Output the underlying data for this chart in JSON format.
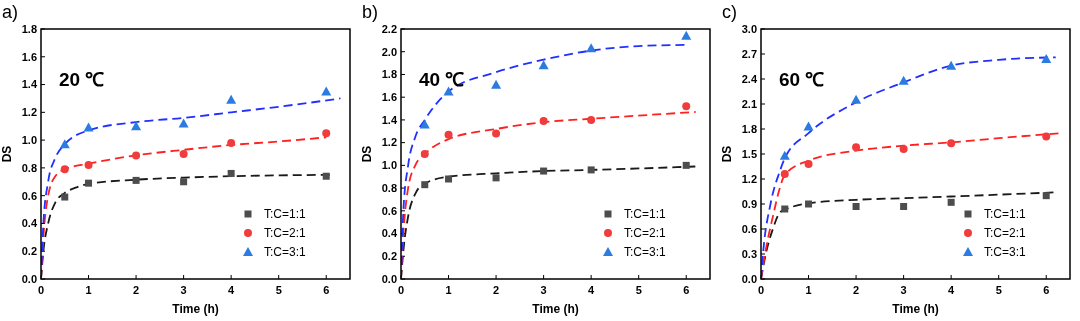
{
  "chart_data": [
    {
      "type": "scatter",
      "title": "a)",
      "xlabel": "Time (h)",
      "ylabel": "DS",
      "annotations": [
        "20 ℃"
      ],
      "xlim": [
        0,
        6.5
      ],
      "xticks": [
        0,
        1,
        2,
        3,
        4,
        5,
        6
      ],
      "ylim": [
        0,
        1.8
      ],
      "yticks": [
        {
          "value": 0,
          "label": "0.0"
        },
        0.2,
        0.4,
        0.6,
        0.8,
        {
          "value": 1,
          "label": "1.0"
        },
        1.2,
        1.4,
        1.6,
        1.8
      ],
      "legend": "bottom right",
      "series": [
        {
          "name": "T:C=1:1",
          "type": "scatter",
          "marker": "square",
          "color": "#4d4d4d",
          "x": [
            0.5,
            1,
            2,
            3,
            4,
            6
          ],
          "values": [
            0.59,
            0.69,
            0.71,
            0.7,
            0.76,
            0.74
          ]
        },
        {
          "name": "T:C=2:1",
          "type": "scatter",
          "marker": "circle",
          "color": "#f03c3c",
          "x": [
            0.5,
            1,
            2,
            3,
            4,
            6
          ],
          "values": [
            0.79,
            0.82,
            0.89,
            0.9,
            0.98,
            1.05
          ]
        },
        {
          "name": "T:C=3:1",
          "type": "scatter",
          "marker": "triangle",
          "color": "#2b7be0",
          "x": [
            0.5,
            1,
            2,
            3,
            4,
            6
          ],
          "values": [
            0.97,
            1.09,
            1.1,
            1.12,
            1.29,
            1.35
          ]
        },
        {
          "type": "line",
          "line_style": "dashed",
          "color": "#1a1a1a",
          "x": [
            0,
            0.05,
            0.15,
            0.3,
            0.5,
            0.75,
            1,
            2,
            3,
            4,
            6.1
          ],
          "values": [
            0,
            0.2,
            0.4,
            0.55,
            0.62,
            0.66,
            0.685,
            0.715,
            0.73,
            0.74,
            0.75
          ]
        },
        {
          "type": "line",
          "line_style": "dashed",
          "color": "#ff2020",
          "x": [
            0,
            0.05,
            0.15,
            0.3,
            0.5,
            1,
            2,
            3,
            4,
            5,
            6
          ],
          "values": [
            0,
            0.3,
            0.6,
            0.74,
            0.79,
            0.83,
            0.89,
            0.93,
            0.965,
            0.99,
            1.02
          ]
        },
        {
          "type": "line",
          "line_style": "dashed",
          "color": "#2030ff",
          "x": [
            0,
            0.05,
            0.15,
            0.3,
            0.5,
            1,
            2,
            3,
            4,
            5,
            6.3
          ],
          "values": [
            0,
            0.4,
            0.7,
            0.87,
            0.97,
            1.07,
            1.13,
            1.16,
            1.2,
            1.24,
            1.3
          ]
        }
      ]
    },
    {
      "type": "scatter",
      "title": "b)",
      "xlabel": "Time (h)",
      "ylabel": "DS",
      "annotations": [
        "40 ℃"
      ],
      "xlim": [
        0,
        6.5
      ],
      "xticks": [
        0,
        1,
        2,
        3,
        4,
        5,
        6
      ],
      "ylim": [
        0,
        2.2
      ],
      "yticks": [
        {
          "value": 0,
          "label": "0.0"
        },
        0.2,
        0.4,
        0.6,
        0.8,
        {
          "value": 1,
          "label": "1.0"
        },
        1.2,
        1.4,
        1.6,
        1.8,
        {
          "value": 2,
          "label": "2.0"
        },
        2.2
      ],
      "legend": "bottom right",
      "series": [
        {
          "name": "T:C=1:1",
          "type": "scatter",
          "marker": "square",
          "color": "#4d4d4d",
          "x": [
            0.5,
            1,
            2,
            3,
            4,
            6
          ],
          "values": [
            0.83,
            0.88,
            0.89,
            0.95,
            0.96,
            1.0
          ]
        },
        {
          "name": "T:C=2:1",
          "type": "scatter",
          "marker": "circle",
          "color": "#f03c3c",
          "x": [
            0.5,
            1,
            2,
            3,
            4,
            6
          ],
          "values": [
            1.1,
            1.27,
            1.28,
            1.39,
            1.4,
            1.52
          ]
        },
        {
          "name": "T:C=3:1",
          "type": "scatter",
          "marker": "triangle",
          "color": "#2b7be0",
          "x": [
            0.5,
            1,
            2,
            3,
            4,
            6
          ],
          "values": [
            1.36,
            1.65,
            1.71,
            1.88,
            2.03,
            2.14
          ]
        },
        {
          "type": "line",
          "line_style": "dashed",
          "color": "#1a1a1a",
          "x": [
            0,
            0.05,
            0.15,
            0.3,
            0.5,
            1,
            2,
            3,
            4,
            6.2
          ],
          "values": [
            0,
            0.25,
            0.55,
            0.75,
            0.84,
            0.9,
            0.93,
            0.95,
            0.96,
            0.99
          ]
        },
        {
          "type": "line",
          "line_style": "dashed",
          "color": "#ff2020",
          "x": [
            0,
            0.05,
            0.15,
            0.3,
            0.5,
            1,
            2,
            3,
            4,
            6.2
          ],
          "values": [
            0,
            0.4,
            0.8,
            1.0,
            1.1,
            1.23,
            1.32,
            1.38,
            1.41,
            1.47
          ]
        },
        {
          "type": "line",
          "line_style": "dashed",
          "color": "#2030ff",
          "x": [
            0,
            0.05,
            0.15,
            0.3,
            0.5,
            1,
            2,
            3,
            4,
            5,
            6
          ],
          "values": [
            0,
            0.6,
            1.0,
            1.25,
            1.4,
            1.65,
            1.82,
            1.93,
            2.01,
            2.05,
            2.06
          ]
        }
      ]
    },
    {
      "type": "scatter",
      "title": "c)",
      "xlabel": "Time (h)",
      "ylabel": "DS",
      "annotations": [
        "60 ℃"
      ],
      "xlim": [
        0,
        6.5
      ],
      "xticks": [
        0,
        1,
        2,
        3,
        4,
        5,
        6
      ],
      "ylim": [
        0,
        3.0
      ],
      "yticks": [
        {
          "value": 0,
          "label": "0.0"
        },
        0.3,
        0.6,
        0.9,
        1.2,
        1.5,
        1.8,
        2.1,
        2.4,
        2.7,
        {
          "value": 3,
          "label": "3.0"
        }
      ],
      "legend": "bottom right",
      "series": [
        {
          "name": "T:C=1:1",
          "type": "scatter",
          "marker": "square",
          "color": "#4d4d4d",
          "x": [
            0.5,
            1,
            2,
            3,
            4,
            6
          ],
          "values": [
            0.84,
            0.9,
            0.87,
            0.87,
            0.92,
            1.0
          ]
        },
        {
          "name": "T:C=2:1",
          "type": "scatter",
          "marker": "circle",
          "color": "#f03c3c",
          "x": [
            0.5,
            1,
            2,
            3,
            4,
            6
          ],
          "values": [
            1.26,
            1.38,
            1.58,
            1.56,
            1.63,
            1.71
          ]
        },
        {
          "name": "T:C=3:1",
          "type": "scatter",
          "marker": "triangle",
          "color": "#2b7be0",
          "x": [
            0.5,
            1,
            2,
            3,
            4,
            6
          ],
          "values": [
            1.48,
            1.83,
            2.15,
            2.38,
            2.56,
            2.64
          ]
        },
        {
          "type": "line",
          "line_style": "dashed",
          "color": "#1a1a1a",
          "x": [
            0,
            0.1,
            0.25,
            0.4,
            0.5,
            1,
            2,
            3,
            4,
            6.2
          ],
          "values": [
            0,
            0.3,
            0.6,
            0.8,
            0.83,
            0.91,
            0.95,
            0.97,
            0.99,
            1.04
          ]
        },
        {
          "type": "line",
          "line_style": "dashed",
          "color": "#ff2020",
          "x": [
            0,
            0.1,
            0.25,
            0.4,
            0.5,
            1,
            2,
            3,
            4,
            5,
            6.3
          ],
          "values": [
            0,
            0.35,
            0.75,
            1.1,
            1.25,
            1.42,
            1.54,
            1.6,
            1.64,
            1.69,
            1.75
          ]
        },
        {
          "type": "line",
          "line_style": "dashed",
          "color": "#2030ff",
          "x": [
            0,
            0.05,
            0.2,
            0.4,
            0.5,
            1,
            2,
            3,
            4,
            5,
            6.2
          ],
          "values": [
            0,
            0.35,
            0.9,
            1.3,
            1.45,
            1.75,
            2.12,
            2.36,
            2.56,
            2.63,
            2.66
          ]
        }
      ]
    }
  ]
}
